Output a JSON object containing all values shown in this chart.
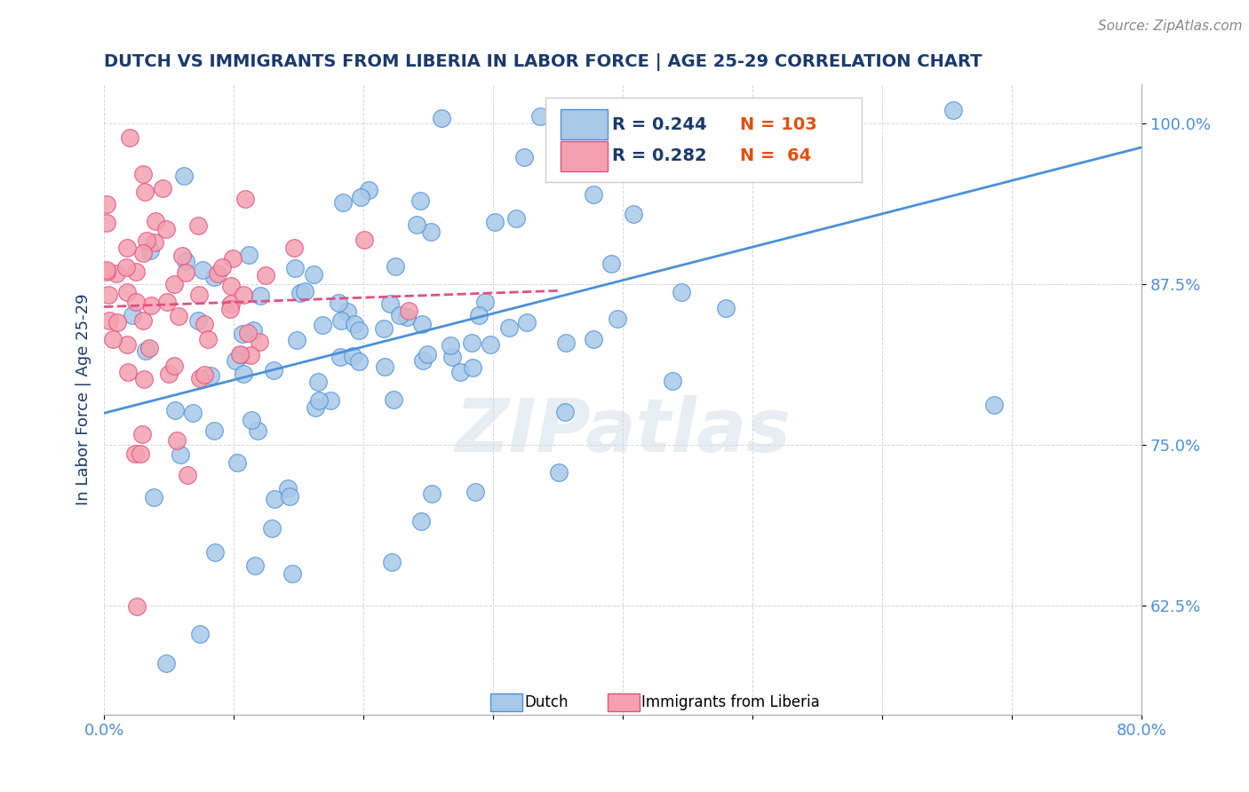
{
  "title": "DUTCH VS IMMIGRANTS FROM LIBERIA IN LABOR FORCE | AGE 25-29 CORRELATION CHART",
  "source": "Source: ZipAtlas.com",
  "ylabel": "In Labor Force | Age 25-29",
  "xlim": [
    0.0,
    0.8
  ],
  "ylim": [
    0.54,
    1.03
  ],
  "xticks": [
    0.0,
    0.1,
    0.2,
    0.3,
    0.4,
    0.5,
    0.6,
    0.7,
    0.8
  ],
  "xticklabels": [
    "0.0%",
    "",
    "",
    "",
    "",
    "",
    "",
    "",
    "80.0%"
  ],
  "yticks": [
    0.625,
    0.75,
    0.875,
    1.0
  ],
  "yticklabels": [
    "62.5%",
    "75.0%",
    "87.5%",
    "100.0%"
  ],
  "dutch_color": "#a8c8e8",
  "liberia_color": "#f4a0b0",
  "dutch_line_color": "#4a90d9",
  "liberia_line_color": "#e05080",
  "dutch_R": 0.244,
  "dutch_N": 103,
  "liberia_R": 0.282,
  "liberia_N": 64,
  "watermark": "ZIPatlas",
  "legend_box_dutch": "#a8c8e8",
  "legend_box_liberia": "#f4a0b0",
  "legend_text_color": "#1a3a6b",
  "legend_N_color": "#e05010",
  "title_color": "#1a3a6b",
  "axis_label_color": "#1a3a6b",
  "tick_color": "#4a90d9",
  "background_color": "#ffffff",
  "grid_color": "#cccccc",
  "dutch_scatter_seed": 42,
  "liberia_scatter_seed": 7
}
